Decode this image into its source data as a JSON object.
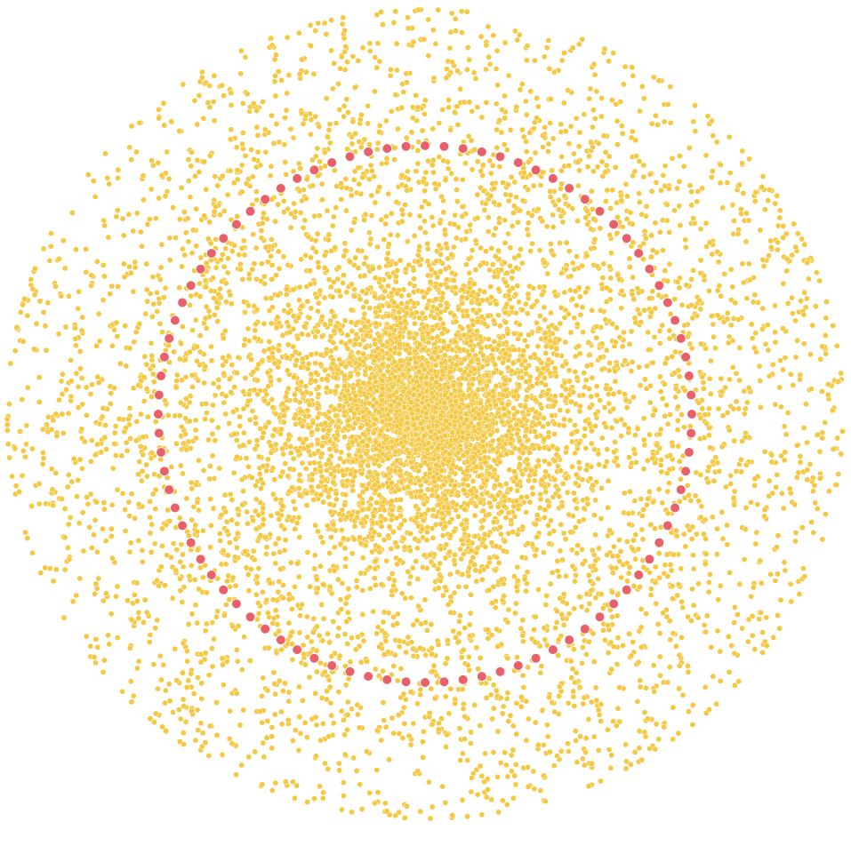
{
  "network": {
    "node_color": "#F5C842",
    "ring_node_color": "#E8606A",
    "background_color": "#FFFFFF",
    "cluster_node_count": 9000,
    "ring_node_count": 88
  }
}
